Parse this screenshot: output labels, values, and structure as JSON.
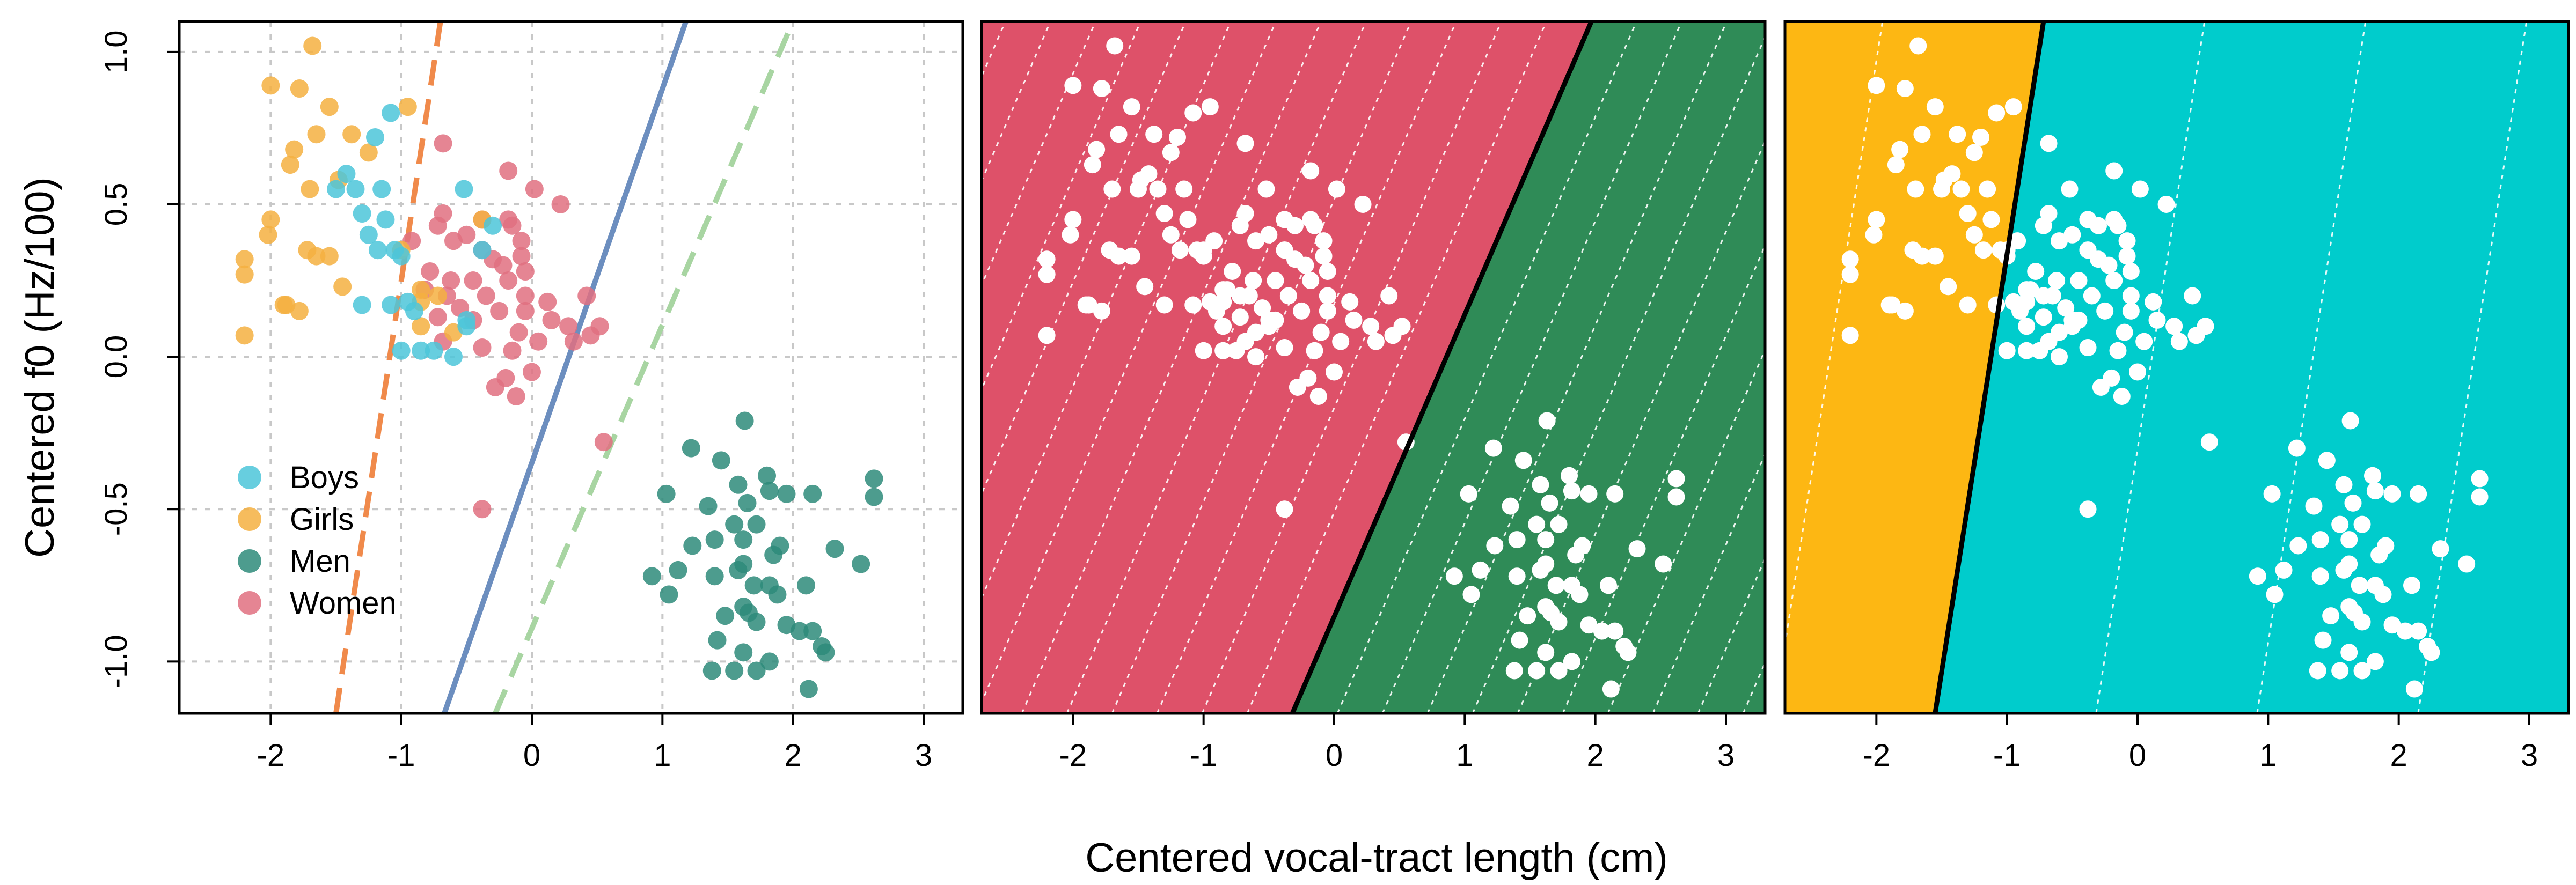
{
  "figure": {
    "xlabel": "Centered vocal-tract length (cm)",
    "ylabel": "Centered f0 (Hz/100)"
  },
  "colors": {
    "boys": "#4CC6D9",
    "girls": "#F5B041",
    "men": "#2E8B7A",
    "women": "#E07080",
    "women_region": "#DE5169",
    "men_region": "#2F8B57",
    "girls_region": "#FDB713",
    "boys_region": "#00CCCC",
    "line_dash_orange": "#F08A4B",
    "line_solid_blue": "#6C8EBF",
    "line_dash_green": "#A8D5A2"
  },
  "chart_data": [
    {
      "type": "scatter",
      "panel": "left",
      "xlim": [
        -2.7,
        3.3
      ],
      "ylim": [
        -1.17,
        1.1
      ],
      "x_ticks": [
        "-2",
        "-1",
        "0",
        "1",
        "2",
        "3"
      ],
      "y_ticks": [
        "-1.0",
        "-0.5",
        "0.0",
        "0.5",
        "1.0"
      ],
      "grid": true,
      "legend_position": "bottom-left",
      "legend": [
        "Boys",
        "Girls",
        "Men",
        "Women"
      ],
      "series": [
        {
          "name": "Boys",
          "color_key": "boys",
          "points": [
            [
              -1.08,
              0.8
            ],
            [
              -1.2,
              0.72
            ],
            [
              -1.42,
              0.6
            ],
            [
              -1.5,
              0.55
            ],
            [
              -1.35,
              0.55
            ],
            [
              -1.3,
              0.47
            ],
            [
              -1.15,
              0.55
            ],
            [
              -1.25,
              0.4
            ],
            [
              -1.12,
              0.45
            ],
            [
              -1.05,
              0.35
            ],
            [
              -1.18,
              0.35
            ],
            [
              -1.0,
              0.33
            ],
            [
              -0.52,
              0.55
            ],
            [
              -0.38,
              0.35
            ],
            [
              -0.3,
              0.43
            ],
            [
              -1.3,
              0.17
            ],
            [
              -1.08,
              0.17
            ],
            [
              -0.95,
              0.18
            ],
            [
              -0.85,
              0.02
            ],
            [
              -0.5,
              0.12
            ],
            [
              -0.6,
              0.0
            ],
            [
              -0.5,
              0.1
            ],
            [
              -0.75,
              0.02
            ],
            [
              -1.0,
              0.02
            ],
            [
              -0.9,
              0.15
            ]
          ]
        },
        {
          "name": "Girls",
          "color_key": "girls",
          "points": [
            [
              -1.68,
              1.02
            ],
            [
              -2.0,
              0.89
            ],
            [
              -1.78,
              0.88
            ],
            [
              -1.55,
              0.82
            ],
            [
              -0.95,
              0.82
            ],
            [
              -1.65,
              0.73
            ],
            [
              -1.38,
              0.73
            ],
            [
              -1.82,
              0.68
            ],
            [
              -1.25,
              0.67
            ],
            [
              -1.85,
              0.63
            ],
            [
              -1.48,
              0.58
            ],
            [
              -1.7,
              0.55
            ],
            [
              -2.0,
              0.45
            ],
            [
              -2.02,
              0.4
            ],
            [
              -1.72,
              0.35
            ],
            [
              -1.55,
              0.33
            ],
            [
              -1.65,
              0.33
            ],
            [
              -2.2,
              0.32
            ],
            [
              -2.2,
              0.27
            ],
            [
              -1.45,
              0.23
            ],
            [
              -0.85,
              0.22
            ],
            [
              -1.88,
              0.17
            ],
            [
              -1.78,
              0.15
            ],
            [
              -1.9,
              0.17
            ],
            [
              -0.85,
              0.18
            ],
            [
              -0.72,
              0.2
            ],
            [
              -0.85,
              0.1
            ],
            [
              -2.2,
              0.07
            ],
            [
              -0.38,
              0.45
            ],
            [
              -1.0,
              0.35
            ],
            [
              -0.6,
              0.08
            ]
          ]
        },
        {
          "name": "Men",
          "color_key": "men",
          "points": [
            [
              1.63,
              -0.21
            ],
            [
              1.22,
              -0.3
            ],
            [
              1.45,
              -0.34
            ],
            [
              1.8,
              -0.39
            ],
            [
              1.95,
              -0.45
            ],
            [
              2.62,
              -0.4
            ],
            [
              2.62,
              -0.46
            ],
            [
              2.15,
              -0.45
            ],
            [
              1.03,
              -0.45
            ],
            [
              1.58,
              -0.42
            ],
            [
              1.82,
              -0.44
            ],
            [
              1.65,
              -0.48
            ],
            [
              1.35,
              -0.49
            ],
            [
              1.55,
              -0.55
            ],
            [
              1.72,
              -0.55
            ],
            [
              1.62,
              -0.6
            ],
            [
              1.4,
              -0.6
            ],
            [
              1.9,
              -0.62
            ],
            [
              1.23,
              -0.62
            ],
            [
              2.32,
              -0.63
            ],
            [
              1.85,
              -0.65
            ],
            [
              1.62,
              -0.68
            ],
            [
              2.52,
              -0.68
            ],
            [
              0.92,
              -0.72
            ],
            [
              1.12,
              -0.7
            ],
            [
              1.58,
              -0.7
            ],
            [
              1.4,
              -0.72
            ],
            [
              1.7,
              -0.75
            ],
            [
              1.82,
              -0.75
            ],
            [
              2.1,
              -0.75
            ],
            [
              1.88,
              -0.78
            ],
            [
              1.05,
              -0.78
            ],
            [
              1.62,
              -0.82
            ],
            [
              1.48,
              -0.85
            ],
            [
              1.72,
              -0.87
            ],
            [
              1.66,
              -0.84
            ],
            [
              1.95,
              -0.88
            ],
            [
              2.05,
              -0.9
            ],
            [
              2.15,
              -0.9
            ],
            [
              1.42,
              -0.93
            ],
            [
              2.22,
              -0.95
            ],
            [
              2.25,
              -0.97
            ],
            [
              1.62,
              -0.97
            ],
            [
              1.82,
              -1.0
            ],
            [
              1.38,
              -1.03
            ],
            [
              1.55,
              -1.03
            ],
            [
              1.72,
              -1.03
            ],
            [
              2.12,
              -1.09
            ]
          ]
        },
        {
          "name": "Women",
          "color_key": "women",
          "points": [
            [
              -0.68,
              0.7
            ],
            [
              -0.18,
              0.61
            ],
            [
              0.02,
              0.55
            ],
            [
              0.22,
              0.5
            ],
            [
              -0.68,
              0.47
            ],
            [
              -0.38,
              0.45
            ],
            [
              -0.18,
              0.45
            ],
            [
              -0.15,
              0.43
            ],
            [
              -0.72,
              0.43
            ],
            [
              -0.5,
              0.4
            ],
            [
              -0.92,
              0.38
            ],
            [
              -0.6,
              0.38
            ],
            [
              -0.08,
              0.38
            ],
            [
              -0.38,
              0.35
            ],
            [
              -0.3,
              0.32
            ],
            [
              -0.08,
              0.33
            ],
            [
              -0.22,
              0.3
            ],
            [
              -0.05,
              0.28
            ],
            [
              -0.78,
              0.28
            ],
            [
              -0.62,
              0.25
            ],
            [
              -0.45,
              0.25
            ],
            [
              -0.18,
              0.25
            ],
            [
              -0.82,
              0.22
            ],
            [
              -0.65,
              0.2
            ],
            [
              -0.35,
              0.2
            ],
            [
              -0.05,
              0.2
            ],
            [
              0.12,
              0.18
            ],
            [
              0.42,
              0.2
            ],
            [
              -0.55,
              0.16
            ],
            [
              -0.25,
              0.15
            ],
            [
              -0.05,
              0.15
            ],
            [
              0.15,
              0.12
            ],
            [
              0.28,
              0.1
            ],
            [
              0.52,
              0.1
            ],
            [
              -0.72,
              0.13
            ],
            [
              -0.45,
              0.12
            ],
            [
              -0.1,
              0.08
            ],
            [
              0.05,
              0.05
            ],
            [
              0.32,
              0.05
            ],
            [
              0.45,
              0.07
            ],
            [
              -0.68,
              0.05
            ],
            [
              -0.38,
              0.03
            ],
            [
              -0.15,
              0.02
            ],
            [
              0.0,
              -0.05
            ],
            [
              -0.2,
              -0.07
            ],
            [
              -0.28,
              -0.1
            ],
            [
              -0.12,
              -0.13
            ],
            [
              0.55,
              -0.28
            ],
            [
              -0.38,
              -0.5
            ]
          ]
        }
      ],
      "lines": [
        {
          "color_key": "line_dash_orange",
          "dashed": true,
          "points": [
            [
              -1.5,
              -1.17
            ],
            [
              -0.7,
              1.1
            ]
          ]
        },
        {
          "color_key": "line_solid_blue",
          "dashed": false,
          "points": [
            [
              -0.67,
              -1.17
            ],
            [
              1.18,
              1.1
            ]
          ]
        },
        {
          "color_key": "line_dash_green",
          "dashed": true,
          "points": [
            [
              -0.28,
              -1.17
            ],
            [
              2.0,
              1.1
            ]
          ]
        }
      ]
    },
    {
      "type": "scatter",
      "panel": "middle",
      "xlim": [
        -2.7,
        3.3
      ],
      "ylim": [
        -1.17,
        1.1
      ],
      "x_ticks": [
        "-2",
        "-1",
        "0",
        "1",
        "2",
        "3"
      ],
      "regions": [
        "women_region",
        "men_region"
      ],
      "boundary": [
        [
          -0.32,
          -1.17
        ],
        [
          1.97,
          1.1
        ]
      ]
    },
    {
      "type": "scatter",
      "panel": "right",
      "xlim": [
        -2.7,
        3.3
      ],
      "ylim": [
        -1.17,
        1.1
      ],
      "x_ticks": [
        "-2",
        "-1",
        "0",
        "1",
        "2",
        "3"
      ],
      "regions": [
        "girls_region",
        "boys_region"
      ],
      "boundary": [
        [
          -1.55,
          -1.17
        ],
        [
          -0.72,
          1.1
        ]
      ]
    }
  ]
}
